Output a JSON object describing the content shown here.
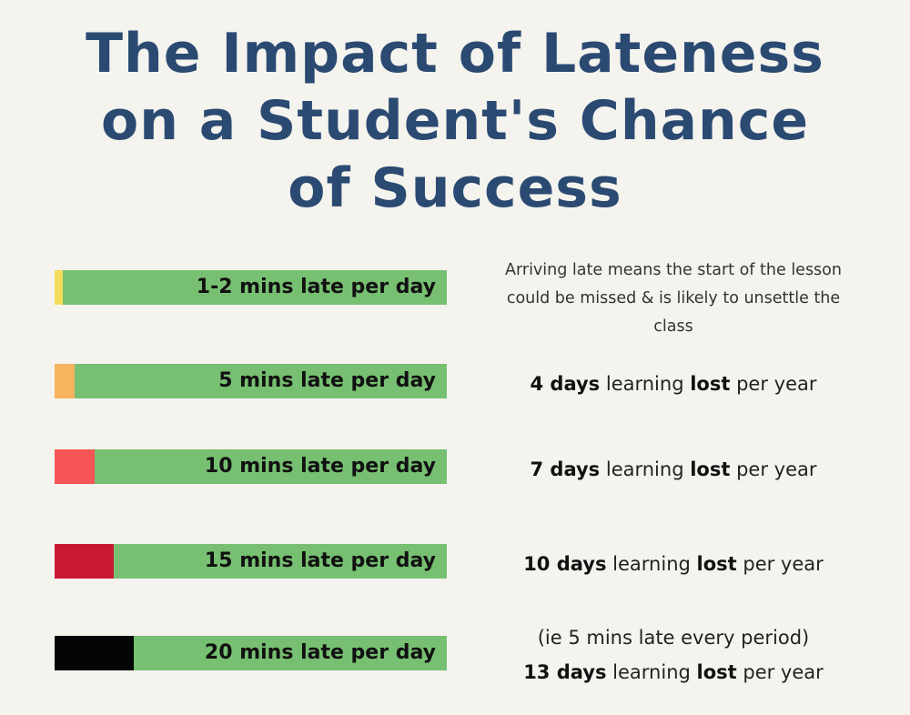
{
  "title": {
    "lines": [
      "The Impact of Lateness",
      "on a Student's Chance",
      "of Success"
    ]
  },
  "rows": [
    {
      "label": "1-2 mins late per day",
      "fill_color": "#f5dc5a",
      "description_lines": [
        "Arriving late means the start of the lesson",
        "could be missed & is likely to unsettle the",
        "class"
      ]
    },
    {
      "label": "5 mins late per day",
      "fill_color": "#f7b35d",
      "days": "4 days",
      "word1": "learning",
      "lost": "lost",
      "word2": "per year"
    },
    {
      "label": "10 mins late per day",
      "fill_color": "#f55555",
      "days": "7 days",
      "word1": "learning",
      "lost": "lost",
      "word2": "per year"
    },
    {
      "label": "15 mins late per day",
      "fill_color": "#c81932",
      "days": "10 days",
      "word1": "learning",
      "lost": "lost",
      "word2": "per year"
    },
    {
      "label": "20 mins late per day",
      "fill_color": "#050505",
      "note": "(ie 5 mins late every period)",
      "days": "13 days",
      "word1": "learning",
      "lost": "lost",
      "word2": "per year"
    }
  ],
  "colors": {
    "background": "#f4f3ee",
    "title": "#2b4a72",
    "bar": "#77c072"
  }
}
